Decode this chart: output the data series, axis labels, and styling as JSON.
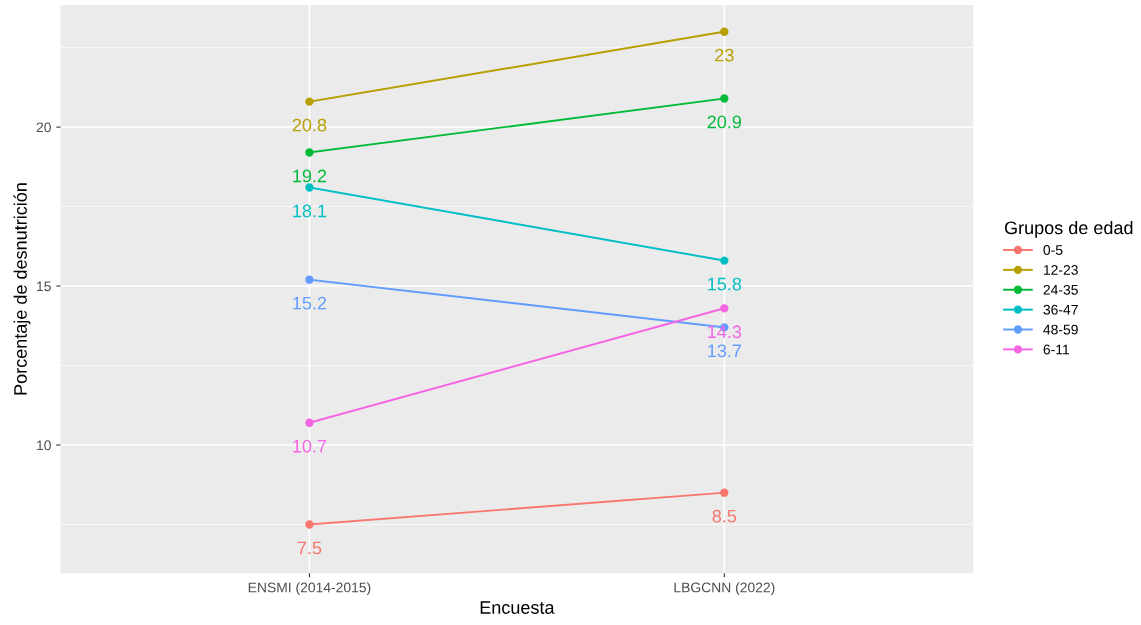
{
  "chart_data": {
    "type": "line",
    "xlabel": "Encuesta",
    "ylabel": "Porcentaje de desnutrición",
    "legend_title": "Grupos de edad",
    "categories": [
      "ENSMI (2014-2015)",
      "LBGCNN (2022)"
    ],
    "series": [
      {
        "name": "0-5",
        "color": "#f8766d",
        "values": [
          7.5,
          8.5
        ]
      },
      {
        "name": "12-23",
        "color": "#b79f00",
        "values": [
          20.8,
          23
        ]
      },
      {
        "name": "24-35",
        "color": "#00ba38",
        "values": [
          19.2,
          20.9
        ]
      },
      {
        "name": "36-47",
        "color": "#00bfc4",
        "values": [
          18.1,
          15.8
        ]
      },
      {
        "name": "48-59",
        "color": "#619cff",
        "values": [
          15.2,
          13.7
        ]
      },
      {
        "name": "6-11",
        "color": "#f564e3",
        "values": [
          10.7,
          14.3
        ]
      }
    ],
    "ylim": [
      5.97,
      23.84
    ],
    "yticks": [
      10,
      15,
      20
    ],
    "grid": true,
    "legend": "right",
    "marker": "circle",
    "line_style": "solid",
    "data_labels": true
  }
}
